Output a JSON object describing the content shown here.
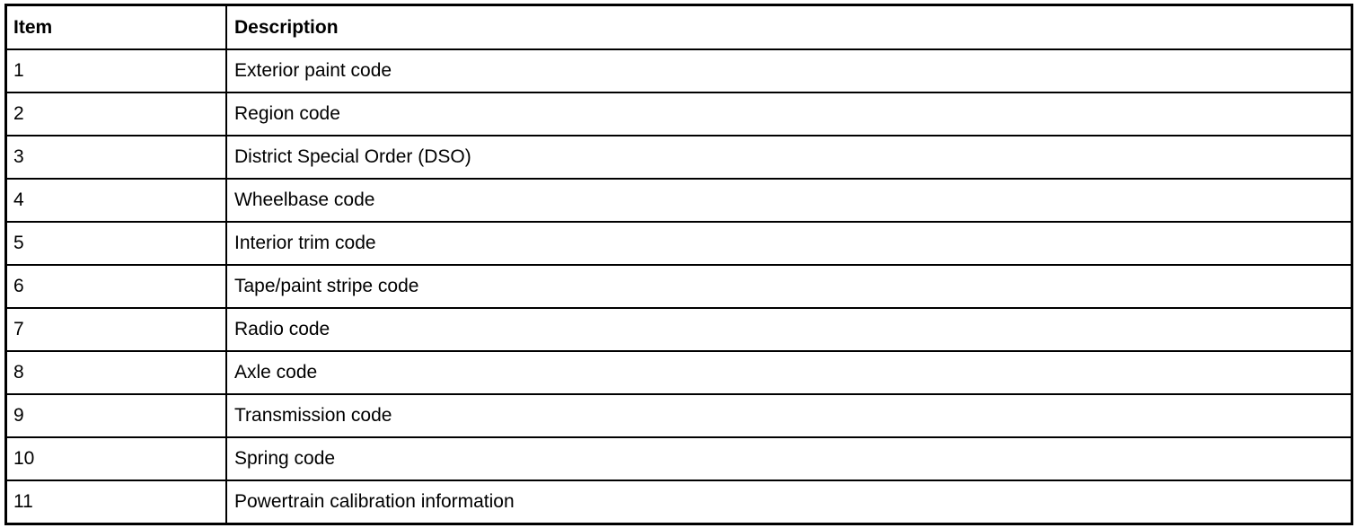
{
  "table": {
    "headers": [
      "Item",
      "Description"
    ],
    "rows": [
      [
        "1",
        "Exterior paint code"
      ],
      [
        "2",
        "Region code"
      ],
      [
        "3",
        "District Special Order (DSO)"
      ],
      [
        "4",
        "Wheelbase code"
      ],
      [
        "5",
        "Interior trim code"
      ],
      [
        "6",
        "Tape/paint stripe code"
      ],
      [
        "7",
        "Radio code"
      ],
      [
        "8",
        "Axle code"
      ],
      [
        "9",
        "Transmission code"
      ],
      [
        "10",
        "Spring code"
      ],
      [
        "11",
        "Powertrain calibration information"
      ]
    ]
  }
}
